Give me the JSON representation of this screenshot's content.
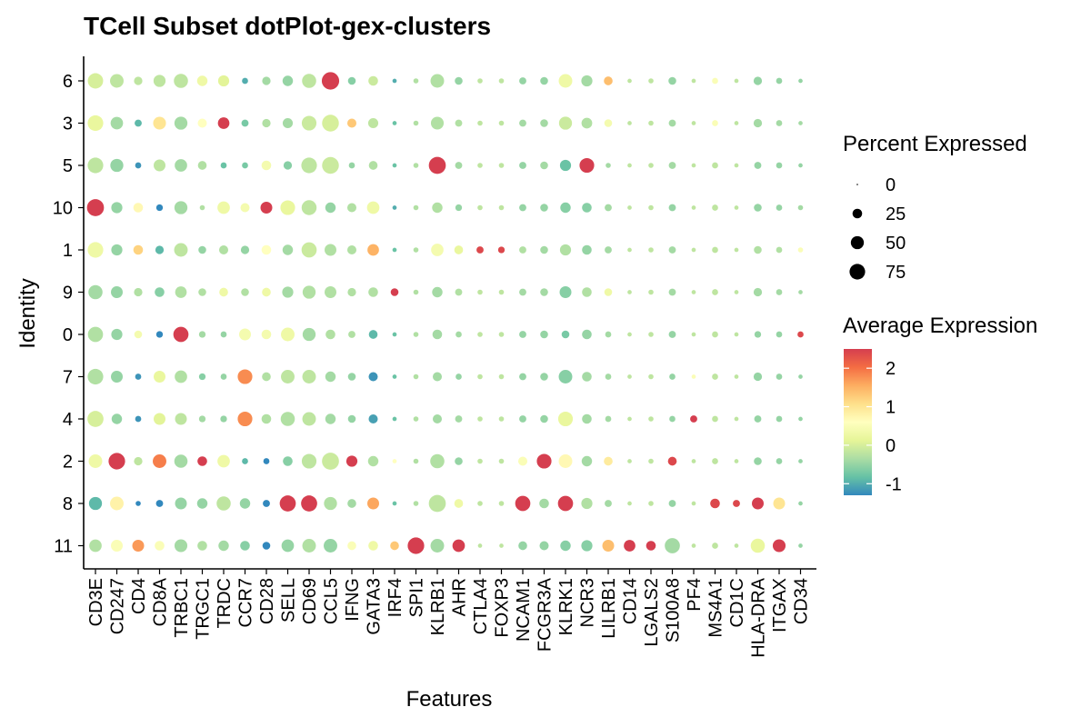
{
  "chart_data": {
    "type": "dot",
    "title": "TCell Subset dotPlot-gex-clusters",
    "xlabel": "Features",
    "ylabel": "Identity",
    "features": [
      "CD3E",
      "CD247",
      "CD4",
      "CD8A",
      "TRBC1",
      "TRGC1",
      "TRDC",
      "CCR7",
      "CD28",
      "SELL",
      "CD69",
      "CCL5",
      "IFNG",
      "GATA3",
      "IRF4",
      "SPI1",
      "KLRB1",
      "AHR",
      "CTLA4",
      "FOXP3",
      "NCAM1",
      "FCGR3A",
      "KLRK1",
      "NCR3",
      "LILRB1",
      "CD14",
      "LGALS2",
      "S100A8",
      "PF4",
      "MS4A1",
      "CD1C",
      "HLA-DRA",
      "ITGAX",
      "CD34"
    ],
    "identities": [
      "6",
      "3",
      "5",
      "10",
      "1",
      "9",
      "0",
      "7",
      "4",
      "2",
      "8",
      "11"
    ],
    "size_legend": {
      "title": "Percent Expressed",
      "breaks": [
        0,
        25,
        50,
        75
      ]
    },
    "color_legend": {
      "title": "Average Expression",
      "breaks": [
        -1,
        0,
        1,
        2
      ],
      "range": [
        -1.3,
        2.5
      ],
      "colors": [
        "#3288BD",
        "#66C2A5",
        "#ABDDA4",
        "#E6F598",
        "#FFFFBF",
        "#FEE08B",
        "#FDAE61",
        "#F46D43",
        "#D53E4F"
      ]
    },
    "pct": [
      [
        72,
        55,
        18,
        42,
        60,
        30,
        35,
        8,
        18,
        30,
        60,
        95,
        15,
        25,
        3,
        5,
        55,
        15,
        5,
        5,
        12,
        15,
        55,
        35,
        20,
        3,
        5,
        15,
        3,
        8,
        3,
        18,
        8,
        3
      ],
      [
        75,
        45,
        12,
        48,
        50,
        22,
        38,
        12,
        18,
        28,
        65,
        88,
        22,
        28,
        3,
        5,
        48,
        12,
        5,
        5,
        12,
        15,
        50,
        32,
        15,
        3,
        5,
        12,
        3,
        8,
        3,
        18,
        8,
        3
      ],
      [
        75,
        50,
        8,
        40,
        45,
        20,
        8,
        8,
        25,
        18,
        75,
        88,
        8,
        20,
        3,
        5,
        90,
        12,
        5,
        5,
        12,
        15,
        35,
        65,
        5,
        3,
        5,
        12,
        3,
        8,
        3,
        12,
        8,
        3
      ],
      [
        90,
        35,
        25,
        10,
        50,
        5,
        45,
        22,
        40,
        65,
        68,
        30,
        22,
        45,
        3,
        5,
        30,
        10,
        5,
        5,
        12,
        15,
        30,
        25,
        12,
        3,
        5,
        12,
        3,
        8,
        3,
        15,
        8,
        5
      ],
      [
        75,
        35,
        25,
        18,
        55,
        15,
        22,
        18,
        25,
        30,
        70,
        40,
        22,
        38,
        3,
        5,
        45,
        20,
        12,
        10,
        12,
        15,
        35,
        25,
        12,
        3,
        5,
        12,
        3,
        8,
        3,
        15,
        8,
        5
      ],
      [
        60,
        40,
        18,
        25,
        38,
        15,
        20,
        15,
        20,
        35,
        50,
        40,
        18,
        25,
        15,
        5,
        30,
        12,
        5,
        5,
        12,
        15,
        40,
        25,
        15,
        3,
        5,
        12,
        3,
        8,
        3,
        18,
        8,
        3
      ],
      [
        70,
        35,
        15,
        10,
        70,
        10,
        8,
        40,
        25,
        55,
        50,
        25,
        12,
        20,
        3,
        5,
        25,
        8,
        5,
        5,
        12,
        15,
        15,
        25,
        8,
        3,
        5,
        12,
        3,
        8,
        3,
        10,
        8,
        8
      ],
      [
        75,
        40,
        8,
        40,
        45,
        10,
        8,
        65,
        20,
        55,
        55,
        30,
        15,
        22,
        3,
        5,
        22,
        8,
        5,
        5,
        12,
        15,
        55,
        25,
        8,
        3,
        5,
        8,
        3,
        8,
        3,
        18,
        8,
        3
      ],
      [
        80,
        30,
        8,
        40,
        40,
        10,
        10,
        65,
        25,
        60,
        55,
        30,
        15,
        22,
        3,
        5,
        22,
        12,
        5,
        5,
        12,
        15,
        65,
        25,
        8,
        3,
        5,
        8,
        12,
        8,
        3,
        12,
        8,
        3
      ],
      [
        55,
        85,
        18,
        55,
        52,
        25,
        45,
        8,
        8,
        25,
        65,
        90,
        35,
        30,
        3,
        5,
        60,
        15,
        5,
        5,
        22,
        65,
        55,
        30,
        20,
        3,
        5,
        20,
        3,
        8,
        3,
        15,
        8,
        3
      ],
      [
        50,
        55,
        5,
        12,
        40,
        30,
        60,
        30,
        12,
        80,
        80,
        50,
        20,
        40,
        3,
        5,
        90,
        20,
        5,
        5,
        70,
        25,
        70,
        35,
        12,
        3,
        5,
        12,
        3,
        25,
        12,
        40,
        40,
        3
      ],
      [
        45,
        40,
        40,
        25,
        48,
        25,
        30,
        25,
        15,
        45,
        55,
        55,
        20,
        25,
        20,
        85,
        55,
        45,
        3,
        3,
        20,
        22,
        30,
        35,
        40,
        38,
        25,
        70,
        3,
        8,
        3,
        60,
        48,
        3
      ]
    ],
    "avg": [
      [
        0.0,
        -0.2,
        -0.2,
        -0.2,
        -0.2,
        0.3,
        0.1,
        -1.0,
        -0.4,
        -0.5,
        -0.2,
        2.5,
        -0.6,
        -0.1,
        -1.0,
        -0.3,
        -0.3,
        -0.5,
        -0.2,
        -0.2,
        -0.5,
        -0.5,
        0.3,
        -0.4,
        1.4,
        -0.2,
        -0.2,
        -0.5,
        -0.2,
        0.5,
        -0.2,
        -0.5,
        -0.5,
        -0.5
      ],
      [
        0.2,
        -0.4,
        -0.9,
        1.0,
        -0.4,
        0.6,
        2.5,
        -0.7,
        -0.3,
        -0.4,
        -0.1,
        0.0,
        1.3,
        -0.2,
        -0.8,
        -0.3,
        -0.3,
        -0.3,
        -0.2,
        -0.2,
        -0.4,
        -0.4,
        -0.1,
        -0.3,
        0.4,
        -0.2,
        -0.2,
        -0.4,
        -0.2,
        0.5,
        -0.2,
        -0.4,
        -0.4,
        -0.4
      ],
      [
        -0.2,
        -0.5,
        -1.2,
        -0.2,
        -0.4,
        -0.3,
        -0.8,
        -0.7,
        0.4,
        -0.6,
        -0.2,
        -0.1,
        -0.5,
        -0.3,
        -0.8,
        -0.3,
        2.5,
        -0.4,
        -0.2,
        -0.2,
        -0.5,
        -0.4,
        -0.8,
        2.5,
        -0.4,
        -0.2,
        -0.2,
        -0.4,
        -0.2,
        -0.2,
        -0.2,
        -0.5,
        -0.5,
        -0.5
      ],
      [
        2.5,
        -0.5,
        0.7,
        -1.3,
        -0.4,
        -0.3,
        0.3,
        0.4,
        2.5,
        0.2,
        -0.2,
        -0.5,
        -0.3,
        0.3,
        -1.0,
        -0.3,
        -0.3,
        -0.5,
        -0.2,
        -0.2,
        -0.5,
        -0.5,
        -0.6,
        -0.6,
        -0.4,
        -0.2,
        -0.2,
        -0.5,
        -0.2,
        -0.2,
        -0.2,
        -0.5,
        -0.5,
        -0.4
      ],
      [
        0.3,
        -0.5,
        1.2,
        -0.9,
        -0.2,
        -0.5,
        -0.3,
        -0.5,
        0.6,
        -0.4,
        -0.1,
        -0.3,
        -0.3,
        1.5,
        -0.8,
        -0.3,
        0.4,
        0.2,
        2.4,
        2.4,
        -0.3,
        -0.4,
        -0.3,
        -0.5,
        -0.4,
        -0.2,
        -0.2,
        -0.4,
        -0.2,
        -0.2,
        -0.2,
        -0.3,
        -0.3,
        0.5
      ],
      [
        -0.4,
        -0.5,
        -0.3,
        -0.6,
        -0.3,
        -0.3,
        0.3,
        -0.3,
        0.3,
        -0.4,
        -0.3,
        -0.3,
        -0.3,
        -0.3,
        2.5,
        -0.3,
        -0.4,
        -0.3,
        -0.2,
        -0.2,
        -0.4,
        -0.4,
        -0.6,
        -0.3,
        0.3,
        -0.2,
        -0.2,
        -0.4,
        -0.2,
        -0.2,
        -0.2,
        -0.4,
        -0.4,
        -0.4
      ],
      [
        -0.3,
        -0.5,
        0.4,
        -1.3,
        2.5,
        -0.4,
        -0.5,
        0.4,
        0.4,
        0.3,
        -0.4,
        -0.3,
        -0.3,
        -0.9,
        -0.8,
        -0.3,
        -0.4,
        -0.4,
        -0.2,
        -0.2,
        -0.5,
        -0.5,
        -0.7,
        -0.5,
        -0.4,
        -0.2,
        -0.2,
        -0.5,
        -0.2,
        -0.2,
        -0.2,
        -0.5,
        -0.5,
        2.4
      ],
      [
        -0.3,
        -0.5,
        -1.2,
        0.2,
        -0.3,
        -0.6,
        -0.5,
        1.8,
        -0.3,
        -0.2,
        -0.2,
        -0.4,
        -0.5,
        -1.2,
        -0.8,
        -0.3,
        -0.4,
        -0.5,
        -0.2,
        -0.2,
        -0.5,
        -0.5,
        -0.6,
        -0.4,
        -0.4,
        -0.2,
        -0.2,
        -0.5,
        0.5,
        -0.2,
        -0.2,
        -0.5,
        -0.5,
        -0.5
      ],
      [
        0.0,
        -0.5,
        -1.2,
        0.1,
        -0.2,
        -0.4,
        -0.5,
        1.8,
        -0.3,
        -0.3,
        -0.2,
        -0.4,
        -0.5,
        -1.1,
        -0.8,
        -0.3,
        -0.4,
        -0.4,
        -0.2,
        -0.2,
        -0.5,
        -0.5,
        0.2,
        -0.4,
        -0.4,
        -0.2,
        -0.2,
        -0.5,
        2.5,
        -0.2,
        -0.2,
        -0.5,
        -0.5,
        -0.5
      ],
      [
        0.3,
        2.5,
        -0.2,
        1.9,
        -0.4,
        2.5,
        0.3,
        -0.9,
        -1.3,
        -0.6,
        -0.2,
        -0.1,
        2.5,
        -0.3,
        0.6,
        -0.3,
        -0.3,
        -0.5,
        -0.2,
        -0.2,
        0.5,
        2.5,
        0.7,
        -0.4,
        0.9,
        -0.2,
        -0.2,
        2.4,
        -0.2,
        -0.2,
        -0.2,
        -0.5,
        -0.5,
        -0.5
      ],
      [
        -0.9,
        0.8,
        -1.3,
        -1.3,
        -0.5,
        -0.5,
        -0.2,
        -0.5,
        -1.3,
        2.5,
        2.5,
        -0.3,
        -0.4,
        1.6,
        -0.8,
        -0.3,
        -0.2,
        0.3,
        -0.2,
        -0.2,
        2.5,
        -0.4,
        2.5,
        -0.3,
        -0.4,
        -0.2,
        -0.2,
        -0.5,
        -0.2,
        2.4,
        2.4,
        2.5,
        1.0,
        -0.5
      ],
      [
        -0.3,
        0.5,
        1.7,
        0.5,
        -0.4,
        -0.3,
        -0.4,
        -0.6,
        -1.3,
        -0.5,
        -0.3,
        -0.5,
        0.5,
        0.3,
        1.3,
        2.5,
        -0.4,
        2.5,
        -0.2,
        -0.2,
        -0.5,
        -0.5,
        -0.6,
        -0.6,
        1.4,
        2.5,
        2.5,
        -0.4,
        -0.2,
        -0.2,
        -0.2,
        0.2,
        2.5,
        -0.5
      ]
    ]
  }
}
